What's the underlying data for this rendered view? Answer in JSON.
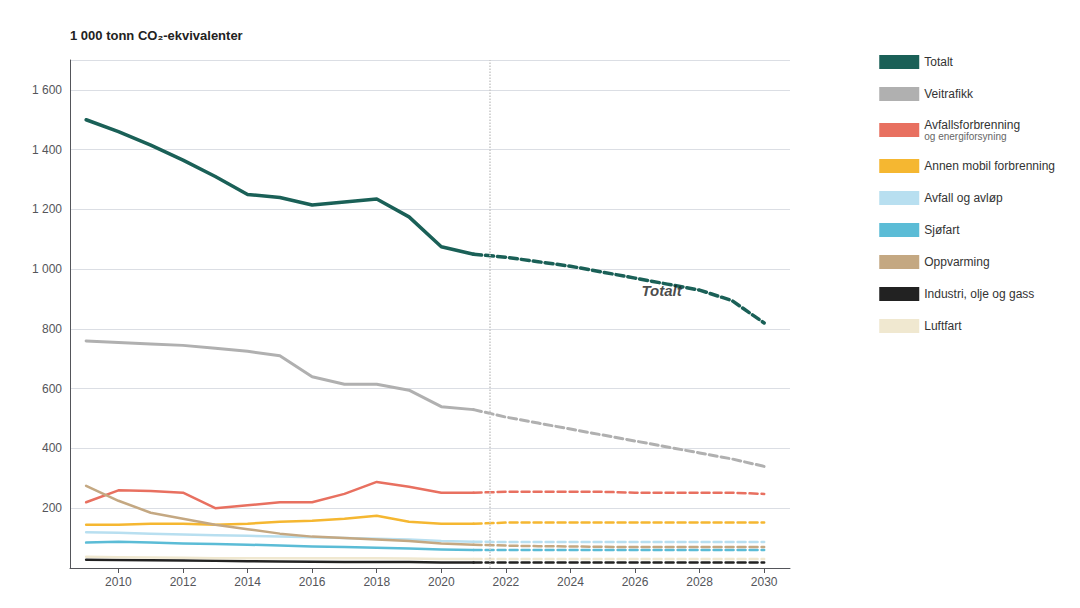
{
  "chart_data": {
    "type": "line",
    "ylabel": "1 000 tonn CO₂-ekvivalenter",
    "x": [
      2009,
      2010,
      2011,
      2012,
      2013,
      2014,
      2015,
      2016,
      2017,
      2018,
      2019,
      2020,
      2021,
      2022,
      2023,
      2024,
      2025,
      2026,
      2027,
      2028,
      2029,
      2030
    ],
    "xlim": [
      2008.5,
      2030.8
    ],
    "xticks": [
      2010,
      2012,
      2014,
      2016,
      2018,
      2020,
      2022,
      2024,
      2026,
      2028,
      2030
    ],
    "ylim": [
      0,
      1700
    ],
    "yticks": [
      200,
      400,
      600,
      800,
      {
        "value": 1000,
        "label": "1 000"
      },
      {
        "value": 1200,
        "label": "1 200"
      },
      {
        "value": 1400,
        "label": "1 400"
      },
      {
        "value": 1600,
        "label": "1 600"
      }
    ],
    "grid": true,
    "legend": "right",
    "vlines": [
      2021.5
    ],
    "annotations": [
      {
        "text": "Totalt",
        "x": 2026.2,
        "y": 930
      }
    ],
    "series": [
      {
        "name": "Totalt",
        "color": "#1a6057",
        "line_style": "solid",
        "values": [
          1500,
          1460,
          1415,
          1365,
          1310,
          1250,
          1240,
          1215,
          1225,
          1235,
          1175,
          1075,
          1050,
          null,
          null,
          null,
          null,
          null,
          null,
          null,
          null,
          null
        ]
      },
      {
        "name": "Veitrafikk",
        "color": "#b0b0b0",
        "line_style": "solid",
        "values": [
          760,
          755,
          750,
          745,
          735,
          725,
          710,
          640,
          615,
          615,
          595,
          540,
          530,
          null,
          null,
          null,
          null,
          null,
          null,
          null,
          null,
          null
        ]
      },
      {
        "name": "Avfallsforbrenning\nog energiforsyning",
        "color": "#e87060",
        "line_style": "solid",
        "values": [
          220,
          260,
          258,
          252,
          200,
          210,
          220,
          220,
          248,
          288,
          272,
          252,
          252,
          null,
          null,
          null,
          null,
          null,
          null,
          null,
          null,
          null
        ]
      },
      {
        "name": "Annen mobil forbrenning",
        "color": "#f5b731",
        "line_style": "solid",
        "values": [
          145,
          145,
          148,
          148,
          145,
          148,
          155,
          158,
          165,
          175,
          155,
          148,
          148,
          null,
          null,
          null,
          null,
          null,
          null,
          null,
          null,
          null
        ]
      },
      {
        "name": "Avfall og avløp",
        "color": "#b8dff0",
        "line_style": "solid",
        "values": [
          120,
          118,
          115,
          112,
          110,
          108,
          105,
          103,
          100,
          98,
          95,
          90,
          88,
          null,
          null,
          null,
          null,
          null,
          null,
          null,
          null,
          null
        ]
      },
      {
        "name": "Sjøfart",
        "color": "#5bbcd6",
        "line_style": "solid",
        "values": [
          85,
          88,
          85,
          82,
          80,
          78,
          75,
          72,
          70,
          68,
          65,
          62,
          60,
          null,
          null,
          null,
          null,
          null,
          null,
          null,
          null,
          null
        ]
      },
      {
        "name": "Oppvarming",
        "color": "#c4a882",
        "line_style": "solid",
        "values": [
          275,
          225,
          185,
          165,
          145,
          130,
          115,
          105,
          100,
          95,
          90,
          82,
          78,
          null,
          null,
          null,
          null,
          null,
          null,
          null,
          null,
          null
        ]
      },
      {
        "name": "Industri, olje og gass",
        "color": "#222222",
        "line_style": "solid",
        "values": [
          28,
          27,
          26,
          25,
          24,
          23,
          22,
          21,
          20,
          20,
          20,
          18,
          18,
          null,
          null,
          null,
          null,
          null,
          null,
          null,
          null,
          null
        ]
      },
      {
        "name": "Luftfart",
        "color": "#f0e8d0",
        "line_style": "solid",
        "values": [
          38,
          36,
          35,
          34,
          33,
          33,
          33,
          33,
          33,
          33,
          32,
          30,
          30,
          null,
          null,
          null,
          null,
          null,
          null,
          null,
          null,
          null
        ]
      },
      {
        "name": "Totalt",
        "color": "#1a6057",
        "line_style": "dashed",
        "values": [
          null,
          null,
          null,
          null,
          null,
          null,
          null,
          null,
          null,
          null,
          null,
          null,
          1050,
          1040,
          1025,
          1010,
          990,
          970,
          950,
          930,
          895,
          820
        ]
      },
      {
        "name": "Veitrafikk",
        "color": "#b0b0b0",
        "line_style": "dashed",
        "values": [
          null,
          null,
          null,
          null,
          null,
          null,
          null,
          null,
          null,
          null,
          null,
          null,
          530,
          505,
          485,
          465,
          445,
          425,
          405,
          385,
          365,
          340
        ]
      },
      {
        "name": "Avfallsforbrenning\nog energiforsyning",
        "color": "#e87060",
        "line_style": "dashed",
        "values": [
          null,
          null,
          null,
          null,
          null,
          null,
          null,
          null,
          null,
          null,
          null,
          null,
          252,
          255,
          255,
          255,
          255,
          252,
          252,
          252,
          252,
          248
        ]
      },
      {
        "name": "Annen mobil forbrenning",
        "color": "#f5b731",
        "line_style": "dashed",
        "values": [
          null,
          null,
          null,
          null,
          null,
          null,
          null,
          null,
          null,
          null,
          null,
          null,
          148,
          152,
          152,
          152,
          152,
          152,
          152,
          152,
          152,
          152
        ]
      },
      {
        "name": "Avfall og avløp",
        "color": "#b8dff0",
        "line_style": "dashed",
        "values": [
          null,
          null,
          null,
          null,
          null,
          null,
          null,
          null,
          null,
          null,
          null,
          null,
          88,
          87,
          87,
          87,
          87,
          87,
          87,
          87,
          87,
          87
        ]
      },
      {
        "name": "Sjøfart",
        "color": "#5bbcd6",
        "line_style": "dashed",
        "values": [
          null,
          null,
          null,
          null,
          null,
          null,
          null,
          null,
          null,
          null,
          null,
          null,
          60,
          60,
          60,
          60,
          60,
          60,
          60,
          60,
          60,
          60
        ]
      },
      {
        "name": "Oppvarming",
        "color": "#c4a882",
        "line_style": "dashed",
        "values": [
          null,
          null,
          null,
          null,
          null,
          null,
          null,
          null,
          null,
          null,
          null,
          null,
          78,
          75,
          73,
          72,
          71,
          70,
          70,
          70,
          70,
          70
        ]
      },
      {
        "name": "Industri, olje og gass",
        "color": "#222222",
        "line_style": "dashed",
        "values": [
          null,
          null,
          null,
          null,
          null,
          null,
          null,
          null,
          null,
          null,
          null,
          null,
          18,
          18,
          18,
          18,
          18,
          18,
          18,
          18,
          18,
          18
        ]
      },
      {
        "name": "Luftfart",
        "color": "#f0e8d0",
        "line_style": "dashed",
        "values": [
          null,
          null,
          null,
          null,
          null,
          null,
          null,
          null,
          null,
          null,
          null,
          null,
          30,
          30,
          30,
          30,
          30,
          30,
          30,
          30,
          30,
          30
        ]
      }
    ]
  }
}
